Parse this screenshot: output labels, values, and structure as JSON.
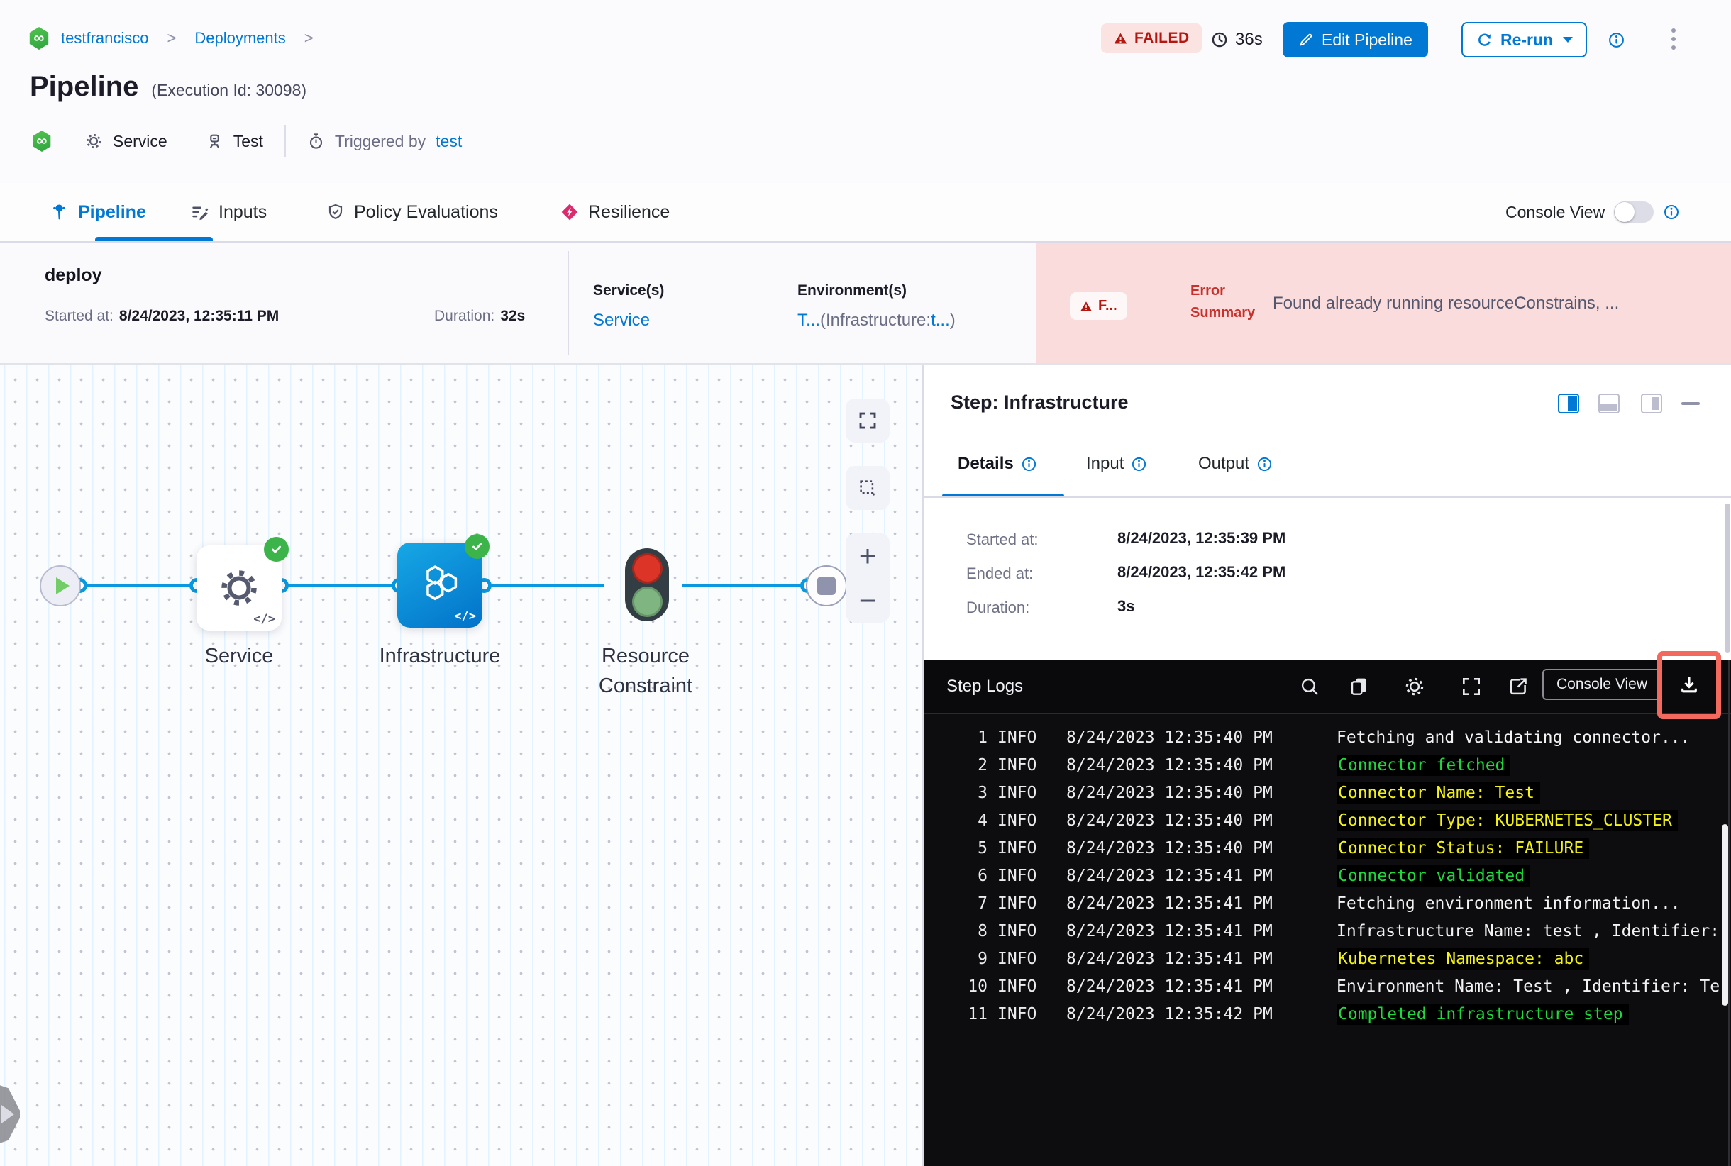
{
  "breadcrumb": {
    "project": "testfrancisco",
    "separator": ">",
    "section": "Deployments"
  },
  "header": {
    "title": "Pipeline",
    "execution_id": "(Execution Id: 30098)",
    "status": "FAILED",
    "elapsed": "36s",
    "edit_pipeline": "Edit Pipeline",
    "rerun": "Re-run",
    "service": "Service",
    "environment": "Test",
    "triggered_by_label": "Triggered by",
    "triggered_by_user": "test"
  },
  "tabs": [
    {
      "label": "Pipeline",
      "active": true
    },
    {
      "label": "Inputs",
      "active": false
    },
    {
      "label": "Policy Evaluations",
      "active": false
    },
    {
      "label": "Resilience",
      "active": false
    }
  ],
  "console_view": {
    "label": "Console View",
    "enabled": false
  },
  "run_summary": {
    "stage": "deploy",
    "started_label": "Started at:",
    "started": "8/24/2023, 12:35:11 PM",
    "duration_label": "Duration:",
    "duration": "32s",
    "services_label": "Service(s)",
    "services_value": "Service",
    "environments_label": "Environment(s)",
    "environments_value": {
      "prefix": "T...",
      "infra_label": "(Infrastructure:",
      "infra_value": "t...",
      "suffix": ")"
    },
    "failed_chip": "F...",
    "error_summary_label_line1": "Error",
    "error_summary_label_line2": "Summary",
    "error_summary": "Found already running resourceConstrains, ..."
  },
  "graph": {
    "code_glyph": "</>",
    "nodes": [
      {
        "label": "Service",
        "status": "success"
      },
      {
        "label": "Infrastructure",
        "status": "success"
      },
      {
        "label": "Resource Constraint",
        "status": "none"
      }
    ]
  },
  "step_panel": {
    "title": "Step: Infrastructure",
    "tabs": [
      "Details",
      "Input",
      "Output"
    ],
    "fields": [
      {
        "label": "Started at:",
        "value": "8/24/2023, 12:35:39 PM"
      },
      {
        "label": "Ended at:",
        "value": "8/24/2023, 12:35:42 PM"
      },
      {
        "label": "Duration:",
        "value": "3s"
      }
    ]
  },
  "logs": {
    "title": "Step Logs",
    "console_view_button": "Console View",
    "colors": {
      "default": "#f3f3f4",
      "success": "#1cd93c",
      "highlight": "#f2f214",
      "console_bg": "#0d0d10"
    },
    "lines": [
      {
        "num": "1",
        "level": "INFO",
        "time": "8/24/2023 12:35:40 PM",
        "msg": "Fetching and validating connector...",
        "color": "default"
      },
      {
        "num": "2",
        "level": "INFO",
        "time": "8/24/2023 12:35:40 PM",
        "msg": "Connector fetched",
        "color": "success"
      },
      {
        "num": "3",
        "level": "INFO",
        "time": "8/24/2023 12:35:40 PM",
        "msg": "Connector Name: Test",
        "color": "highlight"
      },
      {
        "num": "4",
        "level": "INFO",
        "time": "8/24/2023 12:35:40 PM",
        "msg": "Connector Type: KUBERNETES_CLUSTER",
        "color": "highlight"
      },
      {
        "num": "5",
        "level": "INFO",
        "time": "8/24/2023 12:35:40 PM",
        "msg": "Connector Status: FAILURE",
        "color": "highlight"
      },
      {
        "num": "6",
        "level": "INFO",
        "time": "8/24/2023 12:35:41 PM",
        "msg": "Connector validated",
        "color": "success"
      },
      {
        "num": "7",
        "level": "INFO",
        "time": "8/24/2023 12:35:41 PM",
        "msg": "Fetching environment information...",
        "color": "default"
      },
      {
        "num": "8",
        "level": "INFO",
        "time": "8/24/2023 12:35:41 PM",
        "msg": "Infrastructure Name: test , Identifier:",
        "color": "default"
      },
      {
        "num": "9",
        "level": "INFO",
        "time": "8/24/2023 12:35:41 PM",
        "msg": "Kubernetes Namespace: abc",
        "color": "highlight"
      },
      {
        "num": "10",
        "level": "INFO",
        "time": "8/24/2023 12:35:41 PM",
        "msg": "Environment Name: Test , Identifier: Te",
        "color": "default"
      },
      {
        "num": "11",
        "level": "INFO",
        "time": "8/24/2023 12:35:42 PM",
        "msg": "Completed infrastructure step",
        "color": "success"
      }
    ]
  }
}
